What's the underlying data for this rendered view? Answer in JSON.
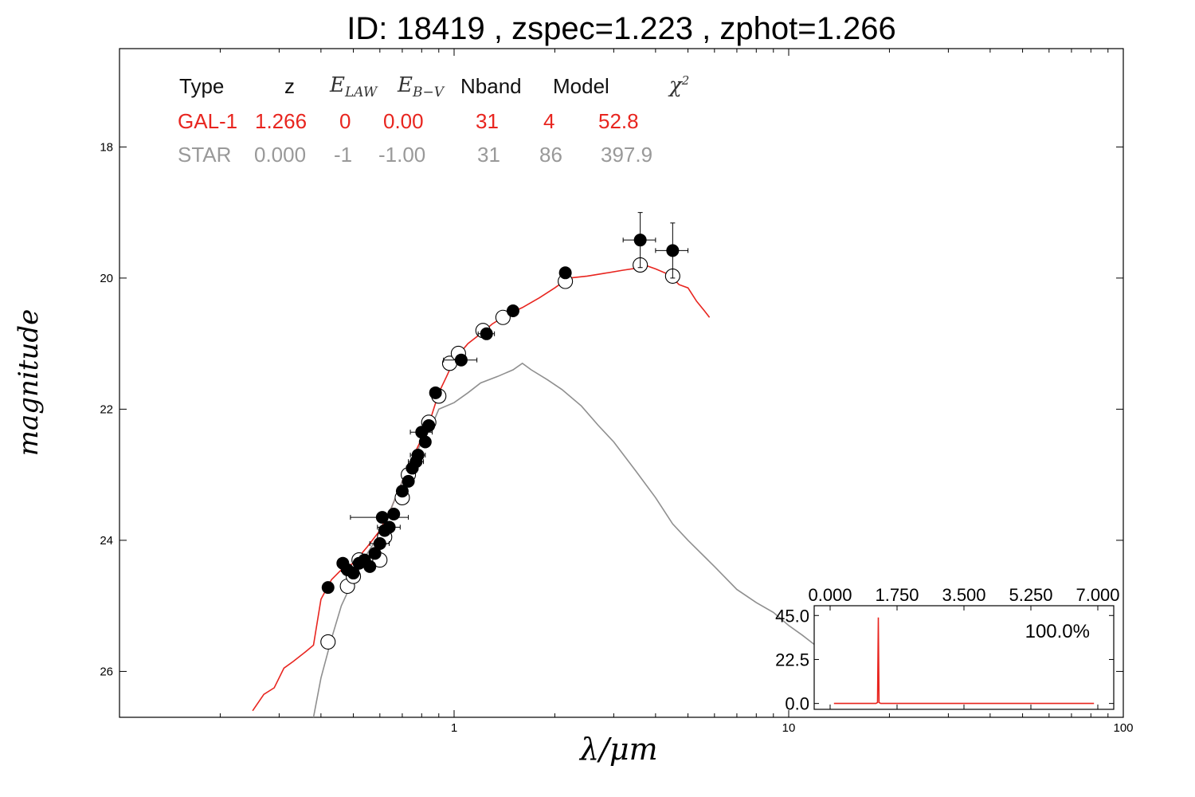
{
  "chart_data": {
    "type": "line",
    "title": "ID:  18419 , zspec=1.223 , zphot=1.266",
    "xlabel": "λ/μm",
    "ylabel": "magnitude",
    "x_scale": "log",
    "xlim": [
      0.1,
      100
    ],
    "ylim": [
      26.7,
      16.5
    ],
    "y_inverted": true,
    "x_ticks": [
      {
        "v": 1,
        "label": "1"
      },
      {
        "v": 10,
        "label": "10"
      },
      {
        "v": 100,
        "label": "100"
      }
    ],
    "y_ticks": [
      {
        "v": 18,
        "label": "18"
      },
      {
        "v": 20,
        "label": "20"
      },
      {
        "v": 22,
        "label": "22"
      },
      {
        "v": 24,
        "label": "24"
      },
      {
        "v": 26,
        "label": "26"
      }
    ],
    "table": {
      "headers": {
        "type": "Type",
        "z": "z",
        "elaw_sym": "E",
        "elaw_sub": "LAW",
        "ebv_sym": "E",
        "ebv_sub": "B−V",
        "nband": "Nband",
        "model": "Model",
        "chi_sym": "χ",
        "chi_sup": "2"
      },
      "rows": [
        {
          "type": "GAL-1",
          "z": "1.266",
          "elaw": "0",
          "ebv": "0.00",
          "nband": "31",
          "model": "4",
          "chi2": "52.8",
          "color": "#e8251f"
        },
        {
          "type": "STAR",
          "z": "0.000",
          "elaw": "-1",
          "ebv": "-1.00",
          "nband": "31",
          "model": "86",
          "chi2": "397.9",
          "color": "#999999"
        }
      ]
    },
    "series": [
      {
        "role": "galaxy-model",
        "color": "#e8251f",
        "x": [
          0.25,
          0.27,
          0.29,
          0.31,
          0.33,
          0.36,
          0.38,
          0.4,
          0.43,
          0.46,
          0.5,
          0.55,
          0.6,
          0.65,
          0.7,
          0.75,
          0.8,
          0.85,
          0.9,
          0.95,
          1.0,
          1.1,
          1.2,
          1.3,
          1.45,
          1.6,
          1.8,
          2.0,
          2.2,
          2.5,
          2.8,
          3.2,
          3.5,
          3.7,
          4.0,
          4.4,
          4.7,
          5.0,
          5.3,
          5.6,
          5.8
        ],
        "y": [
          26.6,
          26.35,
          26.25,
          25.95,
          25.85,
          25.7,
          25.6,
          24.9,
          24.6,
          24.45,
          24.35,
          24.1,
          23.85,
          23.5,
          23.1,
          22.75,
          22.45,
          22.15,
          21.75,
          21.5,
          21.25,
          21.0,
          20.85,
          20.7,
          20.55,
          20.45,
          20.3,
          20.15,
          20.0,
          19.97,
          19.93,
          19.88,
          19.85,
          19.8,
          19.86,
          19.95,
          20.1,
          20.15,
          20.35,
          20.5,
          20.6
        ]
      },
      {
        "role": "star-model",
        "color": "#8f8f8f",
        "x": [
          0.38,
          0.4,
          0.43,
          0.46,
          0.5,
          0.55,
          0.6,
          0.65,
          0.7,
          0.75,
          0.8,
          0.85,
          0.9,
          1.0,
          1.1,
          1.2,
          1.35,
          1.5,
          1.6,
          1.7,
          1.9,
          2.1,
          2.4,
          2.7,
          3.0,
          3.5,
          4.0,
          4.5,
          5.0,
          6.0,
          7.0,
          8.0,
          9.0,
          10.0,
          11.0,
          12.0,
          13.5
        ],
        "y": [
          26.7,
          26.1,
          25.5,
          25.0,
          24.6,
          24.2,
          23.9,
          23.5,
          23.1,
          22.8,
          22.5,
          22.3,
          22.0,
          21.9,
          21.75,
          21.6,
          21.5,
          21.4,
          21.3,
          21.4,
          21.55,
          21.7,
          21.95,
          22.25,
          22.5,
          22.95,
          23.35,
          23.75,
          24.0,
          24.4,
          24.75,
          24.95,
          25.1,
          25.3,
          25.45,
          25.6,
          25.8
        ]
      }
    ],
    "observed": {
      "x": [
        0.42,
        0.465,
        0.48,
        0.5,
        0.52,
        0.54,
        0.56,
        0.58,
        0.6,
        0.61,
        0.62,
        0.64,
        0.66,
        0.7,
        0.73,
        0.75,
        0.77,
        0.78,
        0.8,
        0.82,
        0.84,
        0.88,
        1.05,
        1.25,
        1.5,
        2.15,
        3.6,
        4.5
      ],
      "y": [
        24.72,
        24.35,
        24.45,
        24.5,
        24.35,
        24.3,
        24.4,
        24.2,
        24.05,
        23.65,
        23.85,
        23.8,
        23.6,
        23.25,
        23.1,
        22.9,
        22.8,
        22.7,
        22.35,
        22.5,
        22.25,
        21.75,
        21.25,
        20.85,
        20.5,
        19.92,
        19.42,
        19.58
      ],
      "xerr": [
        0.01,
        0.01,
        0.02,
        0.01,
        0.01,
        0.02,
        0.02,
        0.02,
        0.04,
        0.12,
        0.01,
        0.05,
        0.02,
        0.01,
        0.01,
        0.03,
        0.04,
        0.04,
        0.06,
        0.02,
        0.02,
        0.03,
        0.12,
        0.07,
        0.04,
        0.06,
        0.4,
        0.5
      ],
      "yerr": [
        0.08,
        0.08,
        0.06,
        0.06,
        0.06,
        0.05,
        0.05,
        0.05,
        0.05,
        0.05,
        0.05,
        0.04,
        0.04,
        0.04,
        0.04,
        0.04,
        0.04,
        0.04,
        0.05,
        0.04,
        0.04,
        0.04,
        0.05,
        0.05,
        0.05,
        0.05,
        0.42,
        0.42
      ]
    },
    "model_points": {
      "x": [
        0.42,
        0.48,
        0.5,
        0.52,
        0.6,
        0.62,
        0.7,
        0.73,
        0.84,
        0.9,
        0.97,
        1.03,
        1.22,
        1.4,
        2.15,
        3.6,
        4.5
      ],
      "y": [
        25.55,
        24.7,
        24.55,
        24.3,
        24.3,
        23.95,
        23.35,
        23.0,
        22.2,
        21.8,
        21.3,
        21.15,
        20.8,
        20.6,
        20.05,
        19.8,
        19.97
      ]
    },
    "inset": {
      "type": "line",
      "xlim": [
        0,
        7
      ],
      "ylim": [
        -3,
        50
      ],
      "x_ticks": [
        {
          "v": 0,
          "label": "0.000"
        },
        {
          "v": 1.75,
          "label": "1.750"
        },
        {
          "v": 3.5,
          "label": "3.500"
        },
        {
          "v": 5.25,
          "label": "5.250"
        },
        {
          "v": 7,
          "label": "7.000"
        }
      ],
      "y_ticks": [
        {
          "v": 0,
          "label": "0.0"
        },
        {
          "v": 22.5,
          "label": "22.5"
        },
        {
          "v": 45,
          "label": "45.0"
        }
      ],
      "annotation": "100.0%",
      "color": "#e8251f",
      "x": [
        0.1,
        1.2,
        1.24,
        1.26,
        1.28,
        1.32,
        6.9
      ],
      "y": [
        0,
        0,
        0.5,
        44,
        0.5,
        0,
        0
      ]
    }
  }
}
